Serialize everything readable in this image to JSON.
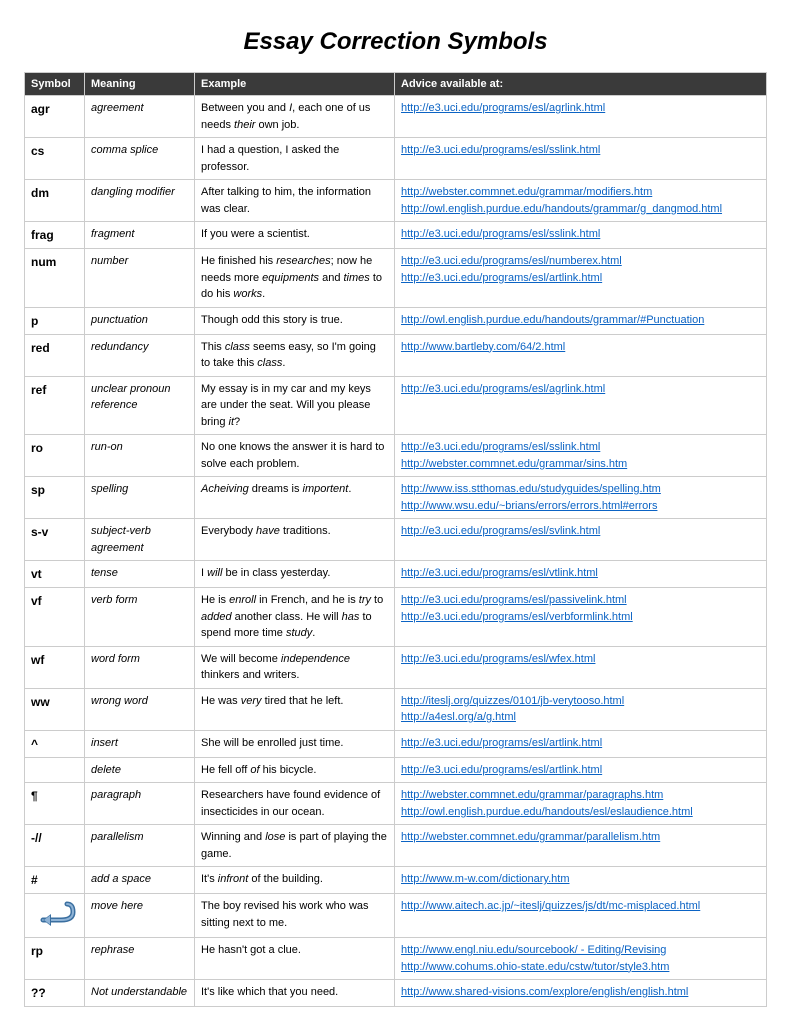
{
  "title": "Essay Correction Symbols",
  "columns": [
    "Symbol",
    "Meaning",
    "Example",
    "Advice available at:"
  ],
  "rows": [
    {
      "symbol": "agr",
      "meaning": "agreement",
      "example_html": "Between you and <i>I</i>, each one of us needs <i>their</i> own job.",
      "links": [
        "http://e3.uci.edu/programs/esl/agrlink.html"
      ]
    },
    {
      "symbol": "cs",
      "meaning": "comma splice",
      "example_html": "I had a question, I asked the professor.",
      "links": [
        "http://e3.uci.edu/programs/esl/sslink.html"
      ]
    },
    {
      "symbol": "dm",
      "meaning": "dangling modifier",
      "example_html": "After talking to him, the information was clear.",
      "links": [
        "http://webster.commnet.edu/grammar/modifiers.htm",
        "http://owl.english.purdue.edu/handouts/grammar/g_dangmod.html"
      ]
    },
    {
      "symbol": "frag",
      "meaning": "fragment",
      "example_html": "If you were a scientist.",
      "links": [
        "http://e3.uci.edu/programs/esl/sslink.html"
      ]
    },
    {
      "symbol": "num",
      "meaning": "number",
      "example_html": "He finished his <i>researches</i>; now he needs more <i>equipments</i> and <i>times</i> to do his <i>works</i>.",
      "links": [
        "http://e3.uci.edu/programs/esl/numberex.html",
        "http://e3.uci.edu/programs/esl/artlink.html"
      ]
    },
    {
      "symbol": "p",
      "meaning": "punctuation",
      "example_html": "Though odd this story is true.",
      "links": [
        "http://owl.english.purdue.edu/handouts/grammar/#Punctuation"
      ]
    },
    {
      "symbol": "red",
      "meaning": "redundancy",
      "example_html": "This <i>class</i> seems easy, so I'm going to take this <i>class</i>.",
      "links": [
        "http://www.bartleby.com/64/2.html"
      ]
    },
    {
      "symbol": "ref",
      "meaning": "unclear pronoun reference",
      "example_html": "My essay is in my car and my keys are under the seat. Will you please bring <i>it</i>?",
      "links": [
        "http://e3.uci.edu/programs/esl/agrlink.html"
      ]
    },
    {
      "symbol": "ro",
      "meaning": "run-on",
      "example_html": "No one knows the answer it is hard to solve each problem.",
      "links": [
        "http://e3.uci.edu/programs/esl/sslink.html",
        "http://webster.commnet.edu/grammar/sins.htm"
      ]
    },
    {
      "symbol": "sp",
      "meaning": "spelling",
      "example_html": "<i>Acheiving</i> dreams is <i>importent</i>.",
      "links": [
        "http://www.iss.stthomas.edu/studyguides/spelling.htm",
        "http://www.wsu.edu/~brians/errors/errors.html#errors"
      ]
    },
    {
      "symbol": "s-v",
      "meaning": "subject-verb agreement",
      "example_html": "Everybody <i>have</i> traditions.",
      "links": [
        "http://e3.uci.edu/programs/esl/svlink.html"
      ]
    },
    {
      "symbol": "vt",
      "meaning": "tense",
      "example_html": "I <i>will</i> be in class yesterday.",
      "links": [
        "http://e3.uci.edu/programs/esl/vtlink.html"
      ]
    },
    {
      "symbol": "vf",
      "meaning": "verb form",
      "example_html": "He is <i>enroll</i> in French, and he is <i>try</i> to <i>added</i> another class. He will <i>has</i> to spend more time <i>study</i>.",
      "links": [
        "http://e3.uci.edu/programs/esl/passivelink.html",
        "http://e3.uci.edu/programs/esl/verbformlink.html"
      ]
    },
    {
      "symbol": "wf",
      "meaning": "word form",
      "example_html": "We will become <i>independence</i> thinkers and writers.",
      "links": [
        "http://e3.uci.edu/programs/esl/wfex.html"
      ]
    },
    {
      "symbol": "ww",
      "meaning": "wrong word",
      "example_html": "He was <i>very</i> tired that he left.",
      "links": [
        "http://iteslj.org/quizzes/0101/jb-verytooso.html",
        "http://a4esl.org/a/g.html"
      ]
    },
    {
      "symbol": "^",
      "meaning": "insert",
      "example_html": "She will be enrolled just time.",
      "links": [
        "http://e3.uci.edu/programs/esl/artlink.html"
      ]
    },
    {
      "symbol": "",
      "meaning": "delete",
      "example_html": "He fell off <i>of</i> his bicycle.",
      "links": [
        "http://e3.uci.edu/programs/esl/artlink.html"
      ]
    },
    {
      "symbol": "¶",
      "meaning": "paragraph",
      "example_html": "Researchers have found evidence of insecticides in our ocean.",
      "links": [
        "http://webster.commnet.edu/grammar/paragraphs.htm",
        "http://owl.english.purdue.edu/handouts/esl/eslaudience.html"
      ]
    },
    {
      "symbol": "-//",
      "meaning": "parallelism",
      "example_html": "Winning and <i>lose</i> is part of playing the game.",
      "links": [
        "http://webster.commnet.edu/grammar/parallelism.htm"
      ]
    },
    {
      "symbol": "#",
      "meaning": "add a space",
      "example_html": "It's <i>infront</i> of the building.",
      "links": [
        "http://www.m-w.com/dictionary.htm"
      ]
    },
    {
      "symbol": "__ARROW__",
      "meaning": "move here",
      "example_html": "The boy revised his work who was sitting next to me.",
      "links": [
        "http://www.aitech.ac.jp/~iteslj/quizzes/js/dt/mc-misplaced.html"
      ]
    },
    {
      "symbol": "rp",
      "meaning": "rephrase",
      "example_html": "He hasn't got a clue.",
      "links": [
        "http://www.engl.niu.edu/sourcebook/ - Editing/Revising",
        "http://www.cohums.ohio-state.edu/cstw/tutor/style3.htm"
      ]
    },
    {
      "symbol": "??",
      "meaning": "Not understandable",
      "example_html": "It's like which that you need.",
      "links": [
        "http://www.shared-visions.com/explore/english/english.html"
      ]
    }
  ],
  "colors": {
    "header_bg": "#3a3a3a",
    "header_fg": "#ffffff",
    "link": "#0b63c4",
    "border": "#cccccc"
  }
}
